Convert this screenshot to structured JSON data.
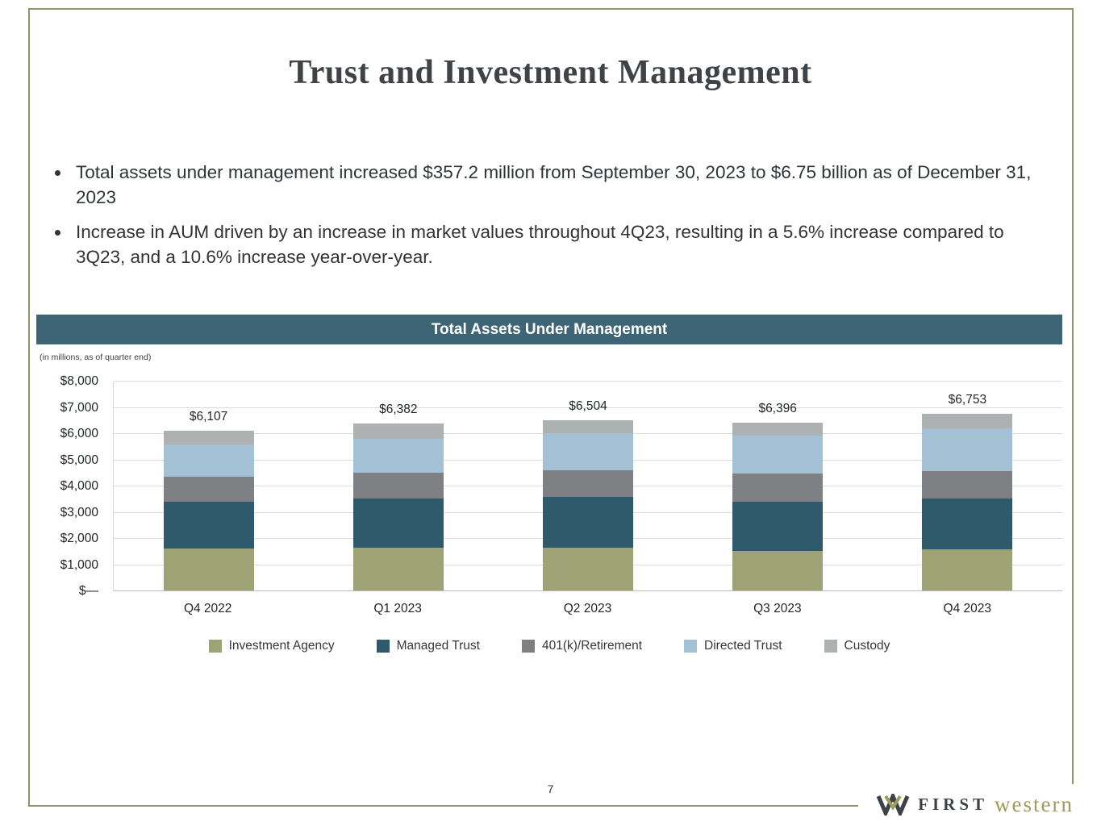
{
  "slide": {
    "title": "Trust and Investment Management",
    "bullets": [
      "Total assets under management increased $357.2 million from September 30, 2023 to $6.75 billion as of December 31, 2023",
      "Increase in AUM driven by an increase in market values throughout 4Q23, resulting in a 5.6% increase compared to 3Q23, and a 10.6% increase year-over-year."
    ]
  },
  "chart": {
    "header": "Total Assets Under Management",
    "subtitle": "(in millions, as of quarter end)"
  },
  "chart_data": {
    "type": "bar",
    "stacked": true,
    "title": "Total Assets Under Management",
    "subtitle": "(in millions, as of quarter end)",
    "categories": [
      "Q4 2022",
      "Q1 2023",
      "Q2 2023",
      "Q3 2023",
      "Q4 2023"
    ],
    "series": [
      {
        "name": "Investment Agency",
        "color": "#9ea376",
        "values": [
          1600,
          1620,
          1620,
          1500,
          1570
        ]
      },
      {
        "name": "Managed Trust",
        "color": "#2f5a6b",
        "values": [
          1800,
          1880,
          1940,
          1900,
          1930
        ]
      },
      {
        "name": "401(k)/Retirement",
        "color": "#7e8083",
        "values": [
          925,
          1000,
          1040,
          1050,
          1050
        ]
      },
      {
        "name": "Directed Trust",
        "color": "#a4c0d4",
        "values": [
          1252,
          1280,
          1400,
          1450,
          1650
        ]
      },
      {
        "name": "Custody",
        "color": "#aeb1b1",
        "values": [
          530,
          602,
          504,
          496,
          553
        ]
      }
    ],
    "totals": [
      "$6,107",
      "$6,382",
      "$6,504",
      "$6,396",
      "$6,753"
    ],
    "ylim": [
      0,
      8000
    ],
    "ytick_step": 1000,
    "ytick_labels": [
      "$—",
      "$1,000",
      "$2,000",
      "$3,000",
      "$4,000",
      "$5,000",
      "$6,000",
      "$7,000",
      "$8,000"
    ],
    "grid": true,
    "legend_position": "bottom"
  },
  "footer": {
    "page_number": "7",
    "logo": {
      "first": "FIRST",
      "western": "western"
    }
  },
  "colors": {
    "banner": "#3e6576",
    "border": "#8e9368",
    "title": "#3f4347"
  }
}
